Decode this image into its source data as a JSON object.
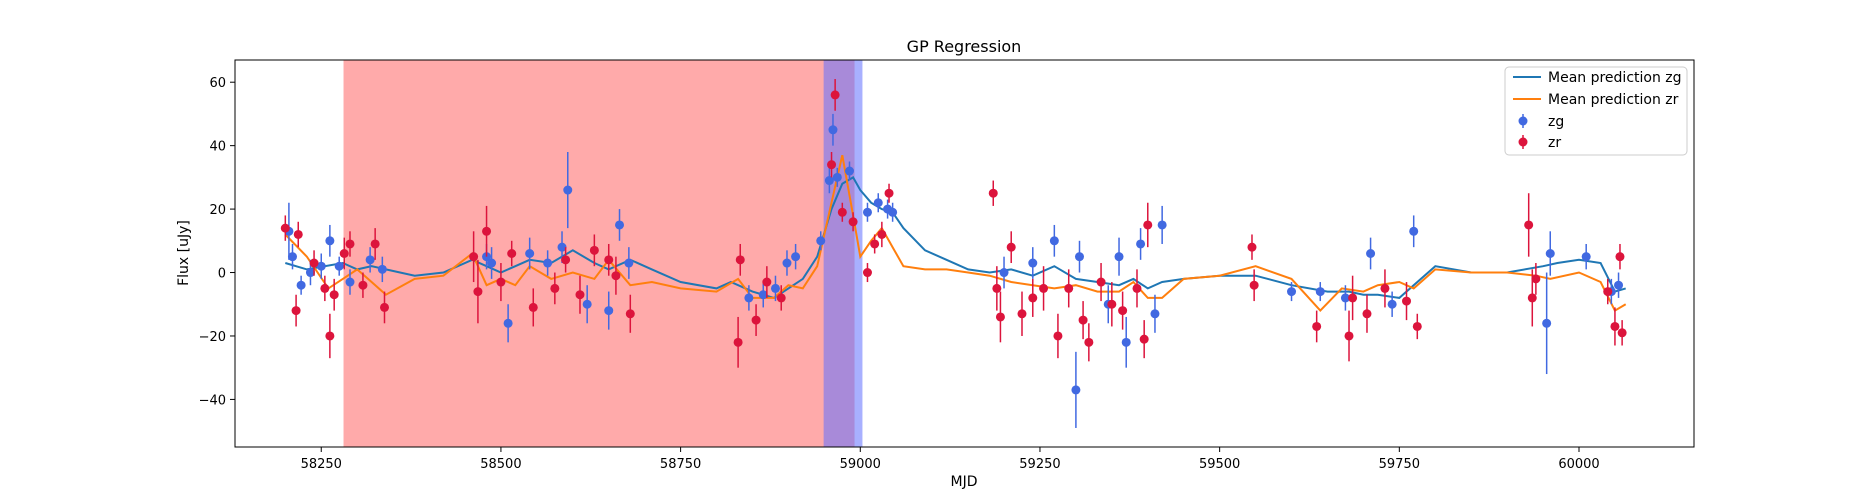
{
  "chart_data": {
    "type": "scatter",
    "title": "GP Regression",
    "xlabel": "MJD",
    "ylabel": "Flux [uJy]",
    "xlim": [
      58130,
      60160
    ],
    "ylim": [
      -55,
      67
    ],
    "xticks": [
      58250,
      58500,
      58750,
      59000,
      59250,
      59500,
      59750,
      60000
    ],
    "yticks": [
      -40,
      -20,
      0,
      20,
      40,
      60
    ],
    "legend_position": "top-right",
    "shaded_regions": [
      {
        "x0": 58281,
        "x1": 58992,
        "color": "#ff5555",
        "opacity": 0.5
      },
      {
        "x0": 58949,
        "x1": 59003,
        "color": "#6070ff",
        "opacity": 0.55
      }
    ],
    "series": [
      {
        "name": "Mean prediction zg",
        "kind": "line",
        "color": "#1f77b4",
        "x": [
          58200,
          58230,
          58280,
          58300,
          58320,
          58340,
          58380,
          58420,
          58460,
          58480,
          58500,
          58520,
          58540,
          58570,
          58600,
          58630,
          58650,
          58680,
          58710,
          58750,
          58800,
          58820,
          58850,
          58880,
          58900,
          58920,
          58940,
          58960,
          58975,
          58990,
          59000,
          59015,
          59030,
          59045,
          59060,
          59090,
          59120,
          59150,
          59180,
          59210,
          59240,
          59270,
          59300,
          59330,
          59360,
          59380,
          59400,
          59420,
          59450,
          59500,
          59550,
          59600,
          59650,
          59680,
          59700,
          59720,
          59750,
          59800,
          59850,
          59900,
          59950,
          59970,
          60000,
          60030,
          60050,
          60065
        ],
        "values": [
          3,
          1,
          3,
          1,
          2,
          1,
          -1,
          0,
          4,
          2,
          0,
          2,
          4,
          3,
          7,
          3,
          1,
          4,
          1,
          -3,
          -5,
          -3,
          -6,
          -8,
          -5,
          -2,
          5,
          20,
          28,
          30,
          26,
          22,
          20,
          19,
          14,
          7,
          4,
          1,
          0,
          1,
          -1,
          2,
          -2,
          -3,
          -4,
          -2,
          -5,
          -3,
          -2,
          -1,
          -1,
          -4,
          -6,
          -6,
          -7,
          -7,
          -8,
          2,
          0,
          0,
          2,
          3,
          4,
          3,
          -6,
          -5
        ]
      },
      {
        "name": "Mean prediction zr",
        "kind": "line",
        "color": "#ff7f0e",
        "x": [
          58200,
          58230,
          58260,
          58280,
          58300,
          58320,
          58340,
          58380,
          58420,
          58460,
          58480,
          58500,
          58520,
          58540,
          58570,
          58600,
          58630,
          58650,
          58680,
          58710,
          58750,
          58800,
          58830,
          58850,
          58880,
          58900,
          58920,
          58940,
          58960,
          58975,
          58990,
          59000,
          59015,
          59030,
          59045,
          59060,
          59090,
          59120,
          59150,
          59180,
          59210,
          59240,
          59270,
          59300,
          59330,
          59360,
          59380,
          59400,
          59420,
          59450,
          59500,
          59550,
          59600,
          59640,
          59670,
          59700,
          59720,
          59750,
          59770,
          59800,
          59850,
          59900,
          59940,
          59960,
          60000,
          60030,
          60050,
          60065
        ],
        "values": [
          12,
          5,
          -5,
          -2,
          1,
          -3,
          -7,
          -2,
          -1,
          6,
          -4,
          -2,
          -4,
          2,
          -2,
          0,
          -2,
          4,
          -4,
          -3,
          -5,
          -6,
          -2,
          -8,
          -8,
          -4,
          -5,
          2,
          22,
          37,
          18,
          5,
          10,
          14,
          8,
          2,
          1,
          1,
          0,
          -1,
          -3,
          -4,
          -5,
          -4,
          -6,
          -6,
          -3,
          -8,
          -8,
          -2,
          -1,
          2,
          -2,
          -12,
          -5,
          -6,
          -4,
          -3,
          -5,
          1,
          0,
          0,
          -1,
          -2,
          0,
          -3,
          -12,
          -10
        ]
      },
      {
        "name": "zg",
        "kind": "errorbar",
        "color": "#4169e1",
        "points": [
          {
            "x": 58205,
            "y": 13,
            "err": 9
          },
          {
            "x": 58210,
            "y": 5,
            "err": 4
          },
          {
            "x": 58222,
            "y": -4,
            "err": 3
          },
          {
            "x": 58235,
            "y": 0,
            "err": 4
          },
          {
            "x": 58250,
            "y": 2,
            "err": 4
          },
          {
            "x": 58262,
            "y": 10,
            "err": 5
          },
          {
            "x": 58275,
            "y": 2,
            "err": 3
          },
          {
            "x": 58290,
            "y": -3,
            "err": 4
          },
          {
            "x": 58318,
            "y": 4,
            "err": 4
          },
          {
            "x": 58335,
            "y": 1,
            "err": 4
          },
          {
            "x": 58480,
            "y": 5,
            "err": 4
          },
          {
            "x": 58487,
            "y": 3,
            "err": 5
          },
          {
            "x": 58510,
            "y": -16,
            "err": 6
          },
          {
            "x": 58540,
            "y": 6,
            "err": 5
          },
          {
            "x": 58565,
            "y": 3,
            "err": 4
          },
          {
            "x": 58585,
            "y": 8,
            "err": 5
          },
          {
            "x": 58593,
            "y": 26,
            "err": 12
          },
          {
            "x": 58620,
            "y": -10,
            "err": 6
          },
          {
            "x": 58650,
            "y": -12,
            "err": 6
          },
          {
            "x": 58665,
            "y": 15,
            "err": 5
          },
          {
            "x": 58678,
            "y": 3,
            "err": 5
          },
          {
            "x": 58845,
            "y": -8,
            "err": 4
          },
          {
            "x": 58865,
            "y": -7,
            "err": 4
          },
          {
            "x": 58882,
            "y": -5,
            "err": 4
          },
          {
            "x": 58898,
            "y": 3,
            "err": 4
          },
          {
            "x": 58910,
            "y": 5,
            "err": 4
          },
          {
            "x": 58945,
            "y": 10,
            "err": 3
          },
          {
            "x": 58957,
            "y": 29,
            "err": 4
          },
          {
            "x": 58962,
            "y": 45,
            "err": 5
          },
          {
            "x": 58968,
            "y": 30,
            "err": 3
          },
          {
            "x": 58985,
            "y": 32,
            "err": 3
          },
          {
            "x": 59010,
            "y": 19,
            "err": 3
          },
          {
            "x": 59025,
            "y": 22,
            "err": 3
          },
          {
            "x": 59038,
            "y": 20,
            "err": 3
          },
          {
            "x": 59045,
            "y": 19,
            "err": 3
          },
          {
            "x": 59200,
            "y": 0,
            "err": 5
          },
          {
            "x": 59240,
            "y": 3,
            "err": 5
          },
          {
            "x": 59270,
            "y": 10,
            "err": 5
          },
          {
            "x": 59300,
            "y": -37,
            "err": 12
          },
          {
            "x": 59305,
            "y": 5,
            "err": 5
          },
          {
            "x": 59345,
            "y": -10,
            "err": 6
          },
          {
            "x": 59360,
            "y": 5,
            "err": 6
          },
          {
            "x": 59370,
            "y": -22,
            "err": 8
          },
          {
            "x": 59390,
            "y": 9,
            "err": 5
          },
          {
            "x": 59410,
            "y": -13,
            "err": 6
          },
          {
            "x": 59420,
            "y": 15,
            "err": 6
          },
          {
            "x": 59600,
            "y": -6,
            "err": 3
          },
          {
            "x": 59640,
            "y": -6,
            "err": 3
          },
          {
            "x": 59675,
            "y": -8,
            "err": 4
          },
          {
            "x": 59710,
            "y": 6,
            "err": 5
          },
          {
            "x": 59740,
            "y": -10,
            "err": 4
          },
          {
            "x": 59770,
            "y": 13,
            "err": 5
          },
          {
            "x": 59955,
            "y": -16,
            "err": 16
          },
          {
            "x": 59960,
            "y": 6,
            "err": 7
          },
          {
            "x": 60010,
            "y": 5,
            "err": 4
          },
          {
            "x": 60045,
            "y": -6,
            "err": 4
          },
          {
            "x": 60055,
            "y": -4,
            "err": 4
          }
        ]
      },
      {
        "name": "zr",
        "kind": "errorbar",
        "color": "#dc143c",
        "points": [
          {
            "x": 58200,
            "y": 14,
            "err": 4
          },
          {
            "x": 58215,
            "y": -12,
            "err": 5
          },
          {
            "x": 58218,
            "y": 12,
            "err": 4
          },
          {
            "x": 58240,
            "y": 3,
            "err": 4
          },
          {
            "x": 58255,
            "y": -5,
            "err": 4
          },
          {
            "x": 58262,
            "y": -20,
            "err": 7
          },
          {
            "x": 58268,
            "y": -7,
            "err": 5
          },
          {
            "x": 58282,
            "y": 6,
            "err": 5
          },
          {
            "x": 58290,
            "y": 9,
            "err": 4
          },
          {
            "x": 58308,
            "y": -4,
            "err": 4
          },
          {
            "x": 58325,
            "y": 9,
            "err": 5
          },
          {
            "x": 58338,
            "y": -11,
            "err": 5
          },
          {
            "x": 58462,
            "y": 5,
            "err": 8
          },
          {
            "x": 58468,
            "y": -6,
            "err": 10
          },
          {
            "x": 58480,
            "y": 13,
            "err": 8
          },
          {
            "x": 58500,
            "y": -3,
            "err": 6
          },
          {
            "x": 58515,
            "y": 6,
            "err": 4
          },
          {
            "x": 58545,
            "y": -11,
            "err": 6
          },
          {
            "x": 58575,
            "y": -5,
            "err": 5
          },
          {
            "x": 58590,
            "y": 4,
            "err": 4
          },
          {
            "x": 58610,
            "y": -7,
            "err": 6
          },
          {
            "x": 58630,
            "y": 7,
            "err": 5
          },
          {
            "x": 58650,
            "y": 4,
            "err": 5
          },
          {
            "x": 58660,
            "y": -1,
            "err": 6
          },
          {
            "x": 58680,
            "y": -13,
            "err": 6
          },
          {
            "x": 58830,
            "y": -22,
            "err": 8
          },
          {
            "x": 58833,
            "y": 4,
            "err": 5
          },
          {
            "x": 58855,
            "y": -15,
            "err": 5
          },
          {
            "x": 58870,
            "y": -3,
            "err": 5
          },
          {
            "x": 58890,
            "y": -8,
            "err": 4
          },
          {
            "x": 58960,
            "y": 34,
            "err": 4
          },
          {
            "x": 58965,
            "y": 56,
            "err": 5
          },
          {
            "x": 58975,
            "y": 19,
            "err": 3
          },
          {
            "x": 58990,
            "y": 16,
            "err": 3
          },
          {
            "x": 59010,
            "y": 0,
            "err": 3
          },
          {
            "x": 59020,
            "y": 9,
            "err": 3
          },
          {
            "x": 59030,
            "y": 12,
            "err": 4
          },
          {
            "x": 59040,
            "y": 25,
            "err": 3
          },
          {
            "x": 59185,
            "y": 25,
            "err": 4
          },
          {
            "x": 59190,
            "y": -5,
            "err": 7
          },
          {
            "x": 59195,
            "y": -14,
            "err": 8
          },
          {
            "x": 59210,
            "y": 8,
            "err": 5
          },
          {
            "x": 59225,
            "y": -13,
            "err": 7
          },
          {
            "x": 59240,
            "y": -8,
            "err": 6
          },
          {
            "x": 59255,
            "y": -5,
            "err": 7
          },
          {
            "x": 59275,
            "y": -20,
            "err": 7
          },
          {
            "x": 59290,
            "y": -5,
            "err": 6
          },
          {
            "x": 59310,
            "y": -15,
            "err": 6
          },
          {
            "x": 59318,
            "y": -22,
            "err": 6
          },
          {
            "x": 59335,
            "y": -3,
            "err": 6
          },
          {
            "x": 59350,
            "y": -10,
            "err": 7
          },
          {
            "x": 59365,
            "y": -12,
            "err": 6
          },
          {
            "x": 59385,
            "y": -5,
            "err": 6
          },
          {
            "x": 59395,
            "y": -21,
            "err": 6
          },
          {
            "x": 59400,
            "y": 15,
            "err": 7
          },
          {
            "x": 59545,
            "y": 8,
            "err": 4
          },
          {
            "x": 59548,
            "y": -4,
            "err": 5
          },
          {
            "x": 59635,
            "y": -17,
            "err": 5
          },
          {
            "x": 59680,
            "y": -20,
            "err": 8
          },
          {
            "x": 59685,
            "y": -8,
            "err": 7
          },
          {
            "x": 59705,
            "y": -13,
            "err": 6
          },
          {
            "x": 59730,
            "y": -5,
            "err": 6
          },
          {
            "x": 59760,
            "y": -9,
            "err": 6
          },
          {
            "x": 59775,
            "y": -17,
            "err": 4
          },
          {
            "x": 59930,
            "y": 15,
            "err": 10
          },
          {
            "x": 59935,
            "y": -8,
            "err": 9
          },
          {
            "x": 59940,
            "y": -2,
            "err": 5
          },
          {
            "x": 60040,
            "y": -6,
            "err": 4
          },
          {
            "x": 60050,
            "y": -17,
            "err": 6
          },
          {
            "x": 60057,
            "y": 5,
            "err": 4
          },
          {
            "x": 60060,
            "y": -19,
            "err": 4
          }
        ]
      }
    ]
  }
}
